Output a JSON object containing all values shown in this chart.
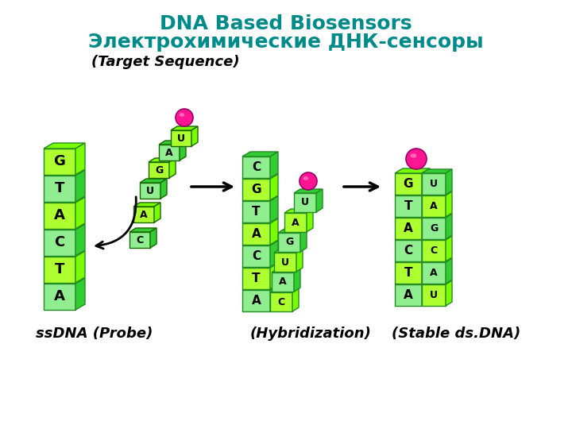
{
  "title_line1": "DNA Based Biosensors",
  "title_line2": "Электрохимические ДНК-сенсоры",
  "title_color": "#008B8B",
  "title_fontsize": 18,
  "label_target": "(Target Sequence)",
  "label_hybrid": "(Hybridization)",
  "label_probe": "ssDNA (Probe)",
  "label_stable": "(Stable ds.DNA)",
  "label_fontsize": 13,
  "bg_color": "#ffffff",
  "probe_letters": [
    "A",
    "T",
    "C",
    "A",
    "T",
    "G"
  ],
  "target_letters_bottom_to_top": [
    "C",
    "A",
    "U",
    "G",
    "A",
    "U"
  ],
  "hybrid_left_letters": [
    "A",
    "T",
    "C",
    "A",
    "T",
    "G",
    "C"
  ],
  "hybrid_right_letters_bottom_to_top": [
    "C",
    "A",
    "U",
    "G",
    "A",
    "U"
  ],
  "stable_left_letters": [
    "A",
    "T",
    "C",
    "A",
    "T",
    "G"
  ],
  "stable_right_letters_bottom_to_top": [
    "U",
    "A",
    "C",
    "G",
    "A",
    "U"
  ],
  "block_green_light": "#90EE90",
  "block_green_mid": "#32CD32",
  "block_green_dark": "#228B22",
  "block_yellow_green": "#ADFF2F",
  "arrow_color": "#000000",
  "ball_color": "#FF1493",
  "ball_highlight": "#FF69B4"
}
